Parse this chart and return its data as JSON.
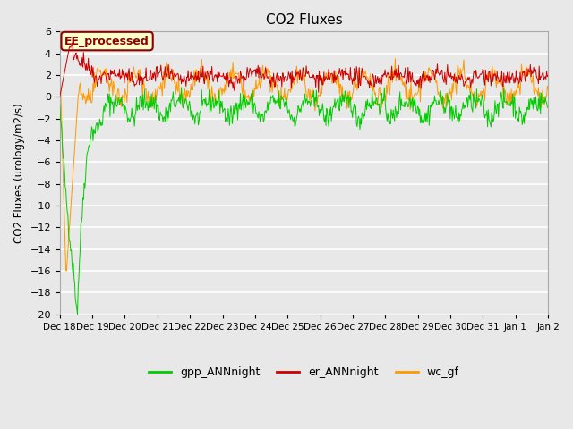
{
  "title": "CO2 Fluxes",
  "ylabel": "CO2 Fluxes (urology/m2/s)",
  "ylim": [
    -20,
    6
  ],
  "yticks": [
    -20,
    -18,
    -16,
    -14,
    -12,
    -10,
    -8,
    -6,
    -4,
    -2,
    0,
    2,
    4,
    6
  ],
  "background_color": "#e8e8e8",
  "plot_bg_color": "#e8e8e8",
  "grid_color": "white",
  "colors": {
    "gpp_ANNnight": "#00cc00",
    "er_ANNnight": "#cc0000",
    "wc_gf": "#ff9900"
  },
  "legend_labels": [
    "gpp_ANNnight",
    "er_ANNnight",
    "wc_gf"
  ],
  "annotation_text": "EE_processed",
  "annotation_color": "#8b0000",
  "annotation_bg": "#ffffcc",
  "n_days": 15,
  "seed": 42,
  "xtick_labels": [
    "Dec 18",
    "Dec 19",
    "Dec 20",
    "Dec 21",
    "Dec 22",
    "Dec 23",
    "Dec 24",
    "Dec 25",
    "Dec 26",
    "Dec 27",
    "Dec 28",
    "Dec 29",
    "Dec 30",
    "Dec 31",
    "Jan 1",
    "Jan 2"
  ]
}
